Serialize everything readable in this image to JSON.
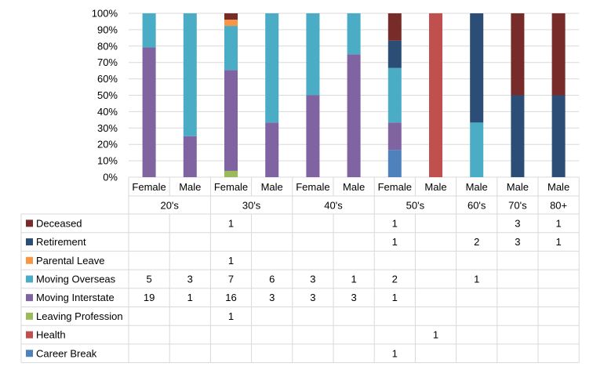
{
  "chart_data": {
    "type": "bar",
    "stacked": "percent",
    "title": "",
    "xlabel": "",
    "ylabel": "",
    "ylim": [
      0,
      100
    ],
    "yticks": [
      "0%",
      "10%",
      "20%",
      "30%",
      "40%",
      "50%",
      "60%",
      "70%",
      "80%",
      "90%",
      "100%"
    ],
    "categories": [
      "Female",
      "Male",
      "Female",
      "Male",
      "Female",
      "Male",
      "Female",
      "Male",
      "Male",
      "Male",
      "Male"
    ],
    "groups": [
      {
        "label": "20's",
        "span": 2
      },
      {
        "label": "30's",
        "span": 2
      },
      {
        "label": "40's",
        "span": 2
      },
      {
        "label": "50's",
        "span": 2
      },
      {
        "label": "60's",
        "span": 1
      },
      {
        "label": "70's",
        "span": 1
      },
      {
        "label": "80+",
        "span": 1
      }
    ],
    "legend": "data-table-left",
    "grid": true,
    "series": [
      {
        "name": "Career Break",
        "color": "#4f81bd",
        "values": [
          null,
          null,
          null,
          null,
          null,
          null,
          1,
          null,
          null,
          null,
          null
        ]
      },
      {
        "name": "Health",
        "color": "#c0504d",
        "values": [
          null,
          null,
          null,
          null,
          null,
          null,
          null,
          1,
          null,
          null,
          null
        ]
      },
      {
        "name": "Leaving Profession",
        "color": "#9bbb59",
        "values": [
          null,
          null,
          1,
          null,
          null,
          null,
          null,
          null,
          null,
          null,
          null
        ]
      },
      {
        "name": "Moving Interstate",
        "color": "#8064a2",
        "values": [
          19,
          1,
          16,
          3,
          3,
          3,
          1,
          null,
          null,
          null,
          null
        ]
      },
      {
        "name": "Moving Overseas",
        "color": "#4bacc6",
        "values": [
          5,
          3,
          7,
          6,
          3,
          1,
          2,
          null,
          1,
          null,
          null
        ]
      },
      {
        "name": "Parental Leave",
        "color": "#f79646",
        "values": [
          null,
          null,
          1,
          null,
          null,
          null,
          null,
          null,
          null,
          null,
          null
        ]
      },
      {
        "name": "Retirement",
        "color": "#2c4d75",
        "values": [
          null,
          null,
          null,
          null,
          null,
          null,
          1,
          null,
          2,
          3,
          1
        ]
      },
      {
        "name": "Deceased",
        "color": "#772c2a",
        "values": [
          null,
          null,
          1,
          null,
          null,
          null,
          1,
          null,
          null,
          3,
          1
        ]
      }
    ]
  }
}
